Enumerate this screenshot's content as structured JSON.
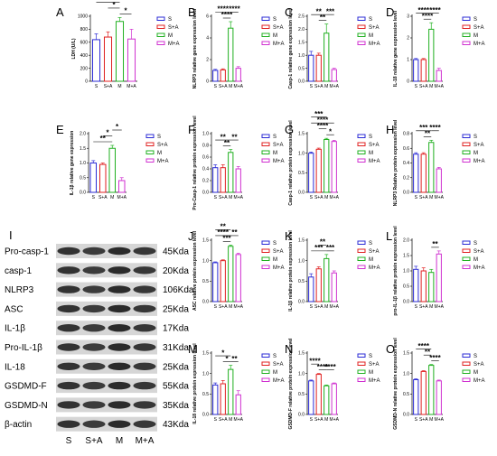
{
  "colors": {
    "S": "#2b2bd6",
    "S+A": "#e02020",
    "M": "#20b020",
    "M+A": "#d030d0"
  },
  "legend_labels": [
    "S",
    "S+A",
    "M",
    "M+A"
  ],
  "categories": [
    "S",
    "S+A",
    "M",
    "M+A"
  ],
  "blot": {
    "letter": "I",
    "rows": [
      {
        "label": "Pro-casp-1",
        "size": "45Kda"
      },
      {
        "label": "casp-1",
        "size": "20Kda"
      },
      {
        "label": "NLRP3",
        "size": "106Kda"
      },
      {
        "label": "ASC",
        "size": "25Kda"
      },
      {
        "label": "IL-1β",
        "size": "17Kda"
      },
      {
        "label": "Pro-IL-1β",
        "size": "31Kda"
      },
      {
        "label": "IL-18",
        "size": "25Kda"
      },
      {
        "label": "GSDMD-F",
        "size": "55Kda"
      },
      {
        "label": "GSDMD-N",
        "size": "35Kda"
      },
      {
        "label": "β-actin",
        "size": "43Kda"
      }
    ],
    "lanes": [
      "S",
      "S+A",
      "M",
      "M+A"
    ]
  },
  "chart_data": [
    {
      "panel": "A",
      "type": "bar",
      "ylabel": "LDH (U/L)",
      "ylim": [
        0,
        1000
      ],
      "yticks": [
        0,
        200,
        400,
        600,
        800,
        1000
      ],
      "categories": [
        "S",
        "S+A",
        "M",
        "M+A"
      ],
      "values": [
        640,
        680,
        920,
        650
      ],
      "errors": [
        90,
        80,
        60,
        150
      ],
      "sig": [
        {
          "from": 0,
          "to": 2,
          "text": "*",
          "level": 2
        },
        {
          "from": 1,
          "to": 2,
          "text": "*",
          "level": 1
        },
        {
          "from": 2,
          "to": 3,
          "text": "*",
          "level": 0
        }
      ]
    },
    {
      "panel": "B",
      "type": "bar",
      "ylabel": "NLRP3 relative gene expression level",
      "ylim": [
        0,
        6
      ],
      "yticks": [
        0,
        2,
        4,
        6
      ],
      "categories": [
        "S",
        "S+A",
        "M",
        "M+A"
      ],
      "values": [
        1.0,
        1.05,
        4.9,
        1.2
      ],
      "errors": [
        0.1,
        0.1,
        0.6,
        0.15
      ],
      "sig": [
        {
          "from": 0,
          "to": 2,
          "text": "****",
          "level": 1
        },
        {
          "from": 1,
          "to": 2,
          "text": "****",
          "level": 0
        },
        {
          "from": 2,
          "to": 3,
          "text": "****",
          "level": 1
        }
      ]
    },
    {
      "panel": "C",
      "type": "bar",
      "ylabel": "Casp-1 relative gene expression level",
      "ylim": [
        0,
        2.5
      ],
      "yticks": [
        0.0,
        0.5,
        1.0,
        1.5,
        2.0,
        2.5
      ],
      "categories": [
        "S",
        "S+A",
        "M",
        "M+A"
      ],
      "values": [
        1.0,
        1.0,
        1.85,
        0.45
      ],
      "errors": [
        0.15,
        0.08,
        0.35,
        0.05
      ],
      "sig": [
        {
          "from": 0,
          "to": 2,
          "text": "**",
          "level": 1
        },
        {
          "from": 1,
          "to": 2,
          "text": "**",
          "level": 0
        },
        {
          "from": 2,
          "to": 3,
          "text": "***",
          "level": 1
        }
      ]
    },
    {
      "panel": "D",
      "type": "bar",
      "ylabel": "IL-18 relative gene expression level",
      "ylim": [
        0,
        3
      ],
      "yticks": [
        0,
        1,
        2,
        3
      ],
      "categories": [
        "S",
        "S+A",
        "M",
        "M+A"
      ],
      "values": [
        1.0,
        1.0,
        2.4,
        0.5
      ],
      "errors": [
        0.05,
        0.05,
        0.3,
        0.1
      ],
      "sig": [
        {
          "from": 0,
          "to": 2,
          "text": "****",
          "level": 1
        },
        {
          "from": 1,
          "to": 2,
          "text": "****",
          "level": 0
        },
        {
          "from": 2,
          "to": 3,
          "text": "****",
          "level": 1
        }
      ]
    },
    {
      "panel": "E",
      "type": "bar",
      "ylabel": "IL-1β relative gene expression",
      "ylim": [
        0,
        2.0
      ],
      "yticks": [
        0.0,
        0.5,
        1.0,
        1.5,
        2.0
      ],
      "categories": [
        "S",
        "S+A",
        "M",
        "M+A"
      ],
      "values": [
        1.0,
        0.95,
        1.5,
        0.4
      ],
      "errors": [
        0.08,
        0.05,
        0.1,
        0.1
      ],
      "sig": [
        {
          "from": 0,
          "to": 2,
          "text": "**",
          "level": 0
        },
        {
          "from": 1,
          "to": 2,
          "text": "*",
          "level": 1
        },
        {
          "from": 2,
          "to": 3,
          "text": "*",
          "level": 2
        }
      ]
    },
    {
      "panel": "F",
      "type": "bar",
      "ylabel": "Pro-Casp-1 relative protein expression level",
      "ylim": [
        0,
        1.0
      ],
      "yticks": [
        0.0,
        0.2,
        0.4,
        0.6,
        0.8,
        1.0
      ],
      "categories": [
        "S",
        "S+A",
        "M",
        "M+A"
      ],
      "values": [
        0.42,
        0.42,
        0.68,
        0.4
      ],
      "errors": [
        0.05,
        0.05,
        0.05,
        0.04
      ],
      "sig": [
        {
          "from": 0,
          "to": 2,
          "text": "**",
          "level": 1
        },
        {
          "from": 1,
          "to": 2,
          "text": "**",
          "level": 0
        },
        {
          "from": 2,
          "to": 3,
          "text": "**",
          "level": 1
        }
      ]
    },
    {
      "panel": "G",
      "type": "bar",
      "ylabel": "Casp-1 relative protein expression level",
      "ylim": [
        0,
        1.5
      ],
      "yticks": [
        0.0,
        0.5,
        1.0,
        1.5
      ],
      "categories": [
        "S",
        "S+A",
        "M",
        "M+A"
      ],
      "values": [
        1.0,
        1.1,
        1.35,
        1.3
      ],
      "errors": [
        0.03,
        0.03,
        0.03,
        0.03
      ],
      "sig": [
        {
          "from": 0,
          "to": 2,
          "text": "***",
          "level": 3
        },
        {
          "from": 0,
          "to": 3,
          "text": "****",
          "level": 2
        },
        {
          "from": 1,
          "to": 2,
          "text": "****",
          "level": 1
        },
        {
          "from": 2,
          "to": 3,
          "text": "*",
          "level": 0
        }
      ]
    },
    {
      "panel": "H",
      "type": "bar",
      "ylabel": "NLRP3 Relative protein expression level",
      "ylim": [
        0,
        0.8
      ],
      "yticks": [
        0.0,
        0.2,
        0.4,
        0.6,
        0.8
      ],
      "categories": [
        "S",
        "S+A",
        "M",
        "M+A"
      ],
      "values": [
        0.52,
        0.52,
        0.68,
        0.32
      ],
      "errors": [
        0.02,
        0.02,
        0.03,
        0.02
      ],
      "sig": [
        {
          "from": 0,
          "to": 2,
          "text": "***",
          "level": 1
        },
        {
          "from": 1,
          "to": 2,
          "text": "**",
          "level": 0
        },
        {
          "from": 2,
          "to": 3,
          "text": "****",
          "level": 1
        }
      ]
    },
    {
      "panel": "J",
      "type": "bar",
      "ylabel": "ASC relative protein expression level",
      "ylim": [
        0,
        1.5
      ],
      "yticks": [
        0.0,
        0.5,
        1.0,
        1.5
      ],
      "categories": [
        "S",
        "S+A",
        "M",
        "M+A"
      ],
      "values": [
        0.95,
        1.0,
        1.35,
        1.15
      ],
      "errors": [
        0.02,
        0.02,
        0.03,
        0.03
      ],
      "sig": [
        {
          "from": 0,
          "to": 2,
          "text": "**",
          "level": 2
        },
        {
          "from": 0,
          "to": 2,
          "text": "****",
          "level": 1
        },
        {
          "from": 1,
          "to": 2,
          "text": "***",
          "level": 0
        },
        {
          "from": 2,
          "to": 3,
          "text": "**",
          "level": 1
        }
      ]
    },
    {
      "panel": "K",
      "type": "bar",
      "ylabel": "IL-1β relative protein expression level",
      "ylim": [
        0,
        1.5
      ],
      "yticks": [
        0.0,
        0.5,
        1.0,
        1.5
      ],
      "categories": [
        "S",
        "S+A",
        "M",
        "M+A"
      ],
      "values": [
        0.6,
        0.8,
        1.05,
        0.7
      ],
      "errors": [
        0.08,
        0.05,
        0.1,
        0.05
      ],
      "sig": [
        {
          "from": 0,
          "to": 2,
          "text": "***",
          "level": 0
        },
        {
          "from": 1,
          "to": 2,
          "text": "**",
          "level": 1
        },
        {
          "from": 2,
          "to": 3,
          "text": "***",
          "level": 0
        }
      ]
    },
    {
      "panel": "L",
      "type": "bar",
      "ylabel": "pro-IL-1β relative protein expression level",
      "ylim": [
        0,
        2.0
      ],
      "yticks": [
        0.0,
        0.5,
        1.0,
        1.5,
        2.0
      ],
      "categories": [
        "S",
        "S+A",
        "M",
        "M+A"
      ],
      "values": [
        1.05,
        1.0,
        0.95,
        1.55
      ],
      "errors": [
        0.1,
        0.1,
        0.1,
        0.1
      ],
      "sig": [
        {
          "from": 2,
          "to": 3,
          "text": "**",
          "level": 0
        }
      ]
    },
    {
      "panel": "M",
      "type": "bar",
      "ylabel": "IL-18 relative protein expression level",
      "ylim": [
        0,
        1.5
      ],
      "yticks": [
        0.0,
        0.5,
        1.0,
        1.5
      ],
      "categories": [
        "S",
        "S+A",
        "M",
        "M+A"
      ],
      "values": [
        0.72,
        0.75,
        1.1,
        0.48
      ],
      "errors": [
        0.05,
        0.08,
        0.1,
        0.1
      ],
      "sig": [
        {
          "from": 0,
          "to": 2,
          "text": "*",
          "level": 1
        },
        {
          "from": 1,
          "to": 2,
          "text": "*",
          "level": 0
        },
        {
          "from": 2,
          "to": 3,
          "text": "**",
          "level": 0
        }
      ]
    },
    {
      "panel": "N",
      "type": "bar",
      "ylabel": "GSDMD-F relative protein expression level",
      "ylim": [
        0,
        1.5
      ],
      "yticks": [
        0.0,
        0.5,
        1.0,
        1.5
      ],
      "categories": [
        "S",
        "S+A",
        "M",
        "M+A"
      ],
      "values": [
        0.82,
        0.98,
        0.7,
        0.75
      ],
      "errors": [
        0.02,
        0.02,
        0.02,
        0.02
      ],
      "sig": [
        {
          "from": 0,
          "to": 1,
          "text": "****",
          "level": 1
        },
        {
          "from": 1,
          "to": 2,
          "text": "****",
          "level": 0
        },
        {
          "from": 2,
          "to": 3,
          "text": "****",
          "level": 0
        }
      ]
    },
    {
      "panel": "O",
      "type": "bar",
      "ylabel": "GSDMD-N relative protein expression level",
      "ylim": [
        0,
        1.5
      ],
      "yticks": [
        0.0,
        0.5,
        1.0,
        1.5
      ],
      "categories": [
        "S",
        "S+A",
        "M",
        "M+A"
      ],
      "values": [
        0.85,
        1.05,
        1.2,
        0.82
      ],
      "errors": [
        0.02,
        0.02,
        0.02,
        0.02
      ],
      "sig": [
        {
          "from": 0,
          "to": 2,
          "text": "****",
          "level": 2
        },
        {
          "from": 1,
          "to": 2,
          "text": "**",
          "level": 1
        },
        {
          "from": 2,
          "to": 3,
          "text": "****",
          "level": 0
        }
      ]
    }
  ]
}
